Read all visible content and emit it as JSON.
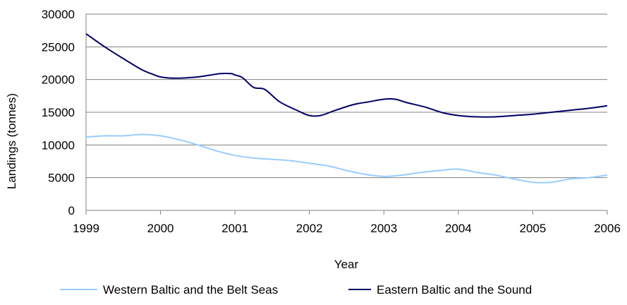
{
  "chart_data": {
    "type": "line",
    "title": "",
    "xlabel": "Year",
    "ylabel": "Landings (tonnes)",
    "xlim": [
      1999,
      2006
    ],
    "ylim": [
      0,
      30000
    ],
    "grid": true,
    "legend_position": "bottom",
    "x_ticks": [
      "1999",
      "2000",
      "2001",
      "2002",
      "2003",
      "2004",
      "2005",
      "2006"
    ],
    "y_ticks": [
      "0",
      "5000",
      "10000",
      "15000",
      "20000",
      "25000",
      "30000"
    ],
    "series": [
      {
        "name": "Western Baltic and the Belt Seas",
        "color": "#99ccff",
        "x": [
          1999,
          1999.25,
          1999.5,
          1999.75,
          2000,
          2000.25,
          2000.5,
          2000.75,
          2001,
          2001.25,
          2001.5,
          2001.75,
          2002,
          2002.25,
          2002.5,
          2002.75,
          2003,
          2003.25,
          2003.5,
          2003.75,
          2004,
          2004.25,
          2004.5,
          2004.75,
          2005,
          2005.25,
          2005.5,
          2005.75,
          2006
        ],
        "values": [
          11200,
          11400,
          11400,
          11600,
          11400,
          10800,
          10000,
          9100,
          8400,
          8000,
          7800,
          7600,
          7200,
          6800,
          6100,
          5500,
          5200,
          5400,
          5800,
          6100,
          6300,
          5800,
          5400,
          4800,
          4300,
          4300,
          4800,
          5000,
          5400
        ]
      },
      {
        "name": "Eastern Baltic and the Sound",
        "color": "#000066",
        "x": [
          1999,
          1999.25,
          1999.5,
          1999.75,
          1999.9,
          2000,
          2000.2,
          2000.5,
          2000.8,
          2000.95,
          2001,
          2001.1,
          2001.25,
          2001.4,
          2001.6,
          2001.85,
          2002,
          2002.15,
          2002.35,
          2002.6,
          2002.8,
          2003,
          2003.15,
          2003.3,
          2003.55,
          2003.8,
          2004,
          2004.25,
          2004.5,
          2004.75,
          2005,
          2005.25,
          2005.5,
          2005.75,
          2006
        ],
        "values": [
          27000,
          25000,
          23200,
          21500,
          20800,
          20400,
          20200,
          20400,
          20900,
          20900,
          20700,
          20300,
          18800,
          18500,
          16600,
          15200,
          14500,
          14500,
          15300,
          16200,
          16600,
          17000,
          17000,
          16500,
          15800,
          14900,
          14500,
          14300,
          14300,
          14500,
          14700,
          15000,
          15300,
          15600,
          16000
        ]
      }
    ]
  }
}
